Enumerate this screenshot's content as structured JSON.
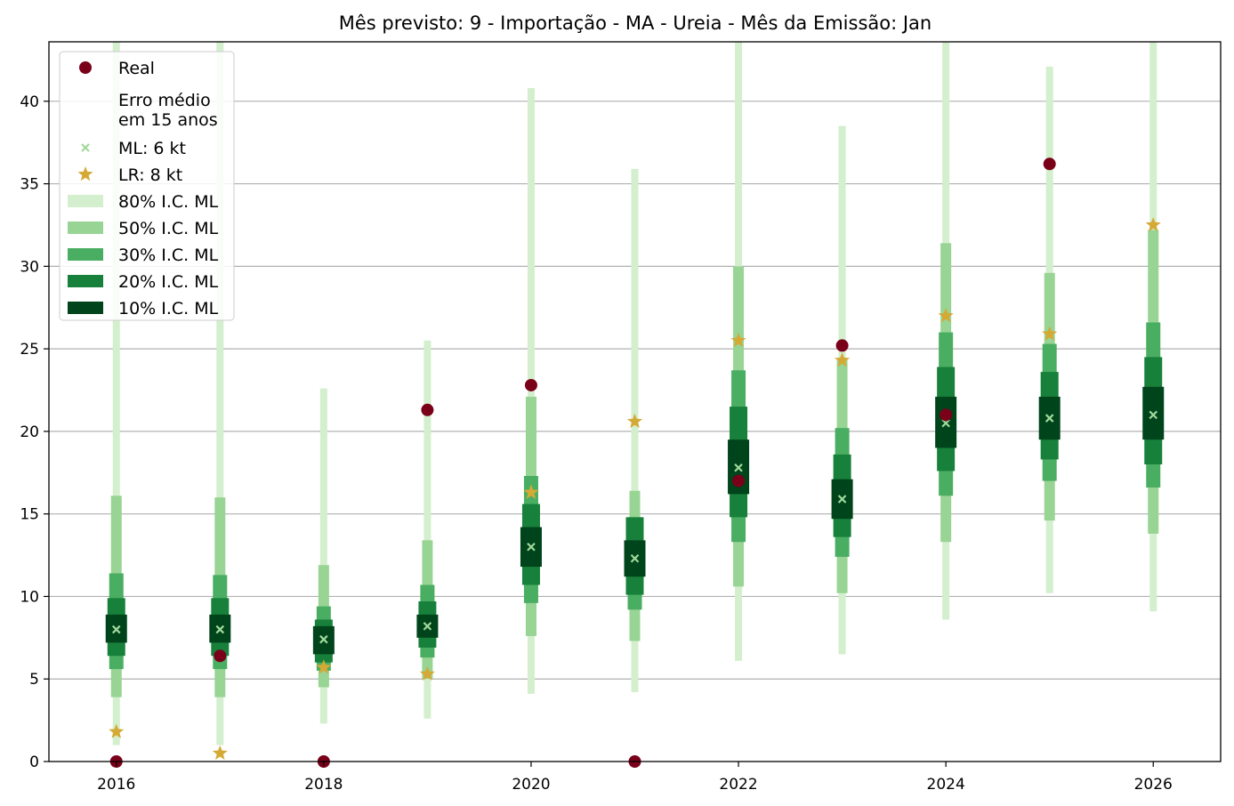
{
  "chart_data": {
    "type": "scatter",
    "title": "Mês previsto: 9 - Importação - MA - Ureia - Mês da Emissão: Jan",
    "xlabel": "",
    "ylabel": "",
    "xlim": [
      2015.35,
      2026.65
    ],
    "ylim": [
      0,
      43.6
    ],
    "x_ticks": [
      "2016",
      "2018",
      "2020",
      "2022",
      "2024",
      "2026"
    ],
    "y_ticks": [
      "0",
      "5",
      "10",
      "15",
      "20",
      "25",
      "30",
      "35",
      "40"
    ],
    "grid": "horizontal",
    "legend_position": "top-left",
    "years": [
      2016,
      2017,
      2018,
      2019,
      2020,
      2021,
      2022,
      2023,
      2024,
      2025,
      2026
    ],
    "real": [
      0,
      6.4,
      0,
      21.3,
      22.8,
      0,
      17.0,
      25.2,
      21.0,
      36.2,
      null
    ],
    "ml": [
      8.0,
      8.0,
      7.4,
      8.2,
      13.0,
      12.3,
      17.8,
      15.9,
      20.5,
      20.8,
      21.0
    ],
    "lr": [
      1.8,
      0.5,
      5.7,
      5.3,
      16.3,
      20.6,
      25.5,
      24.3,
      27.0,
      25.9,
      32.5
    ],
    "intervals": {
      "ic80": [
        [
          1.0,
          43.6
        ],
        [
          1.0,
          43.6
        ],
        [
          2.3,
          22.6
        ],
        [
          2.6,
          25.5
        ],
        [
          4.1,
          40.8
        ],
        [
          4.2,
          35.9
        ],
        [
          6.1,
          43.6
        ],
        [
          6.5,
          38.5
        ],
        [
          8.6,
          43.6
        ],
        [
          10.2,
          42.1
        ],
        [
          9.1,
          43.6
        ]
      ],
      "ic50": [
        [
          3.9,
          16.1
        ],
        [
          3.9,
          16.0
        ],
        [
          4.5,
          11.9
        ],
        [
          5.0,
          13.4
        ],
        [
          7.6,
          22.1
        ],
        [
          7.3,
          16.4
        ],
        [
          10.6,
          30.0
        ],
        [
          10.2,
          24.3
        ],
        [
          13.3,
          31.4
        ],
        [
          14.6,
          29.6
        ],
        [
          13.8,
          32.2
        ]
      ],
      "ic30": [
        [
          5.6,
          11.4
        ],
        [
          5.6,
          11.3
        ],
        [
          5.5,
          9.4
        ],
        [
          6.3,
          10.7
        ],
        [
          9.6,
          17.3
        ],
        [
          9.2,
          14.8
        ],
        [
          13.3,
          23.7
        ],
        [
          12.4,
          20.2
        ],
        [
          16.1,
          26.0
        ],
        [
          17.0,
          25.3
        ],
        [
          16.6,
          26.6
        ]
      ],
      "ic20": [
        [
          6.4,
          9.9
        ],
        [
          6.4,
          9.9
        ],
        [
          6.0,
          8.6
        ],
        [
          6.9,
          9.7
        ],
        [
          10.7,
          15.6
        ],
        [
          10.1,
          14.8
        ],
        [
          14.8,
          21.5
        ],
        [
          13.6,
          18.6
        ],
        [
          17.6,
          23.9
        ],
        [
          18.3,
          23.6
        ],
        [
          18.0,
          24.5
        ]
      ],
      "ic10": [
        [
          7.2,
          8.9
        ],
        [
          7.2,
          8.9
        ],
        [
          6.5,
          8.2
        ],
        [
          7.5,
          8.9
        ],
        [
          11.8,
          14.2
        ],
        [
          11.2,
          13.4
        ],
        [
          16.2,
          19.5
        ],
        [
          14.7,
          17.1
        ],
        [
          19.0,
          22.1
        ],
        [
          19.5,
          22.1
        ],
        [
          19.5,
          22.7
        ]
      ]
    },
    "legend": [
      {
        "key": "real",
        "label": "Real",
        "kind": "dot"
      },
      {
        "key": "erro",
        "label_lines": [
          "Erro médio",
          "em 15 anos"
        ],
        "kind": "none"
      },
      {
        "key": "ml",
        "label": "ML: 6 kt",
        "kind": "x"
      },
      {
        "key": "lr",
        "label": "LR: 8 kt",
        "kind": "star"
      },
      {
        "key": "ic80",
        "label": "80% I.C. ML",
        "kind": "patch"
      },
      {
        "key": "ic50",
        "label": "50% I.C. ML",
        "kind": "patch"
      },
      {
        "key": "ic30",
        "label": "30% I.C. ML",
        "kind": "patch"
      },
      {
        "key": "ic20",
        "label": "20% I.C. ML",
        "kind": "patch"
      },
      {
        "key": "ic10",
        "label": "10% I.C. ML",
        "kind": "patch"
      }
    ],
    "colors": {
      "real": "#7a0019",
      "ml": "#a1d99b",
      "lr": "#d4a935",
      "ic80": "#d3efcd",
      "ic50": "#98d494",
      "ic30": "#4aae62",
      "ic20": "#17803a",
      "ic10": "#00441b"
    }
  }
}
